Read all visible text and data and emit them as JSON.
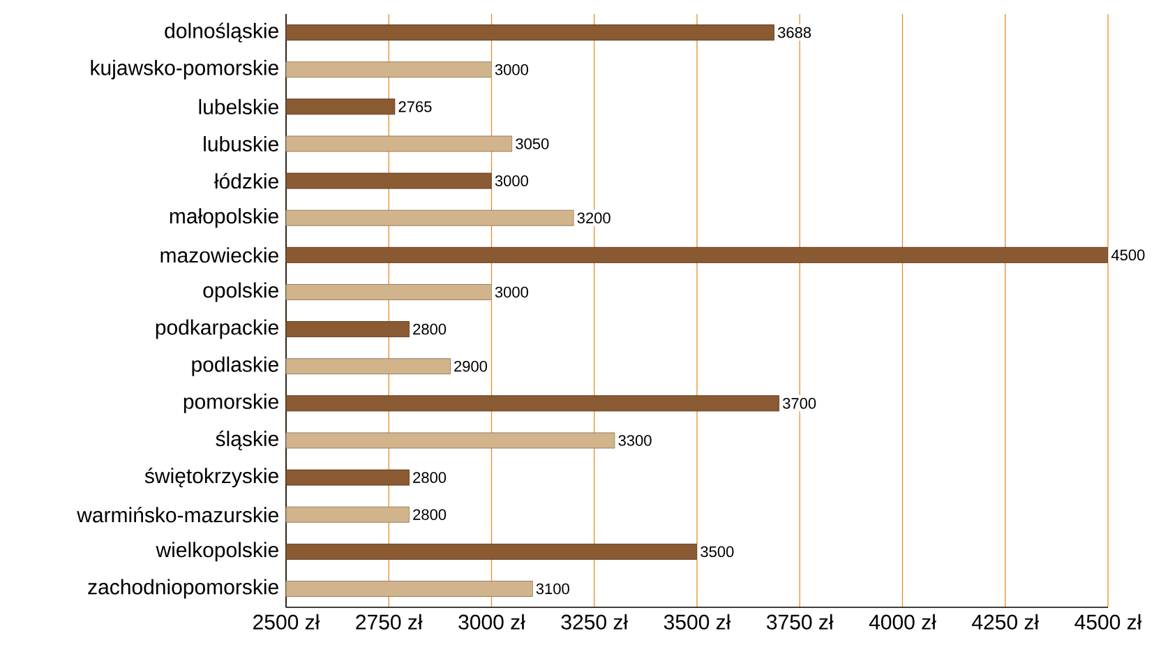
{
  "chart_data": {
    "type": "bar",
    "orientation": "horizontal",
    "categories": [
      "dolnośląskie",
      "kujawsko-pomorskie",
      "lubelskie",
      "lubuskie",
      "łódzkie",
      "małopolskie",
      "mazowieckie",
      "opolskie",
      "podkarpackie",
      "podlaskie",
      "pomorskie",
      "śląskie",
      "świętokrzyskie",
      "warmińsko-mazurskie",
      "wielkopolskie",
      "zachodniopomorskie"
    ],
    "values": [
      3688,
      3000,
      2765,
      3050,
      3000,
      3200,
      4500,
      3000,
      2800,
      2900,
      3700,
      3300,
      2800,
      2800,
      3500,
      3100
    ],
    "colors": [
      "#8a5a32",
      "#d2b48c",
      "#8a5a32",
      "#d2b48c",
      "#8a5a32",
      "#d2b48c",
      "#8a5a32",
      "#d2b48c",
      "#8a5a32",
      "#d2b48c",
      "#8a5a32",
      "#d2b48c",
      "#8a5a32",
      "#d2b48c",
      "#8a5a32",
      "#d2b48c"
    ],
    "xlim": [
      2500,
      4500
    ],
    "xticks": [
      {
        "value": 2500,
        "label": "2500 zł"
      },
      {
        "value": 2750,
        "label": "2750 zł"
      },
      {
        "value": 3000,
        "label": "3000 zł"
      },
      {
        "value": 3250,
        "label": "3250 zł"
      },
      {
        "value": 3500,
        "label": "3500 zł"
      },
      {
        "value": 3750,
        "label": "3750 zł"
      },
      {
        "value": 4000,
        "label": "4000 zł"
      },
      {
        "value": 4250,
        "label": "4250 zł"
      },
      {
        "value": 4500,
        "label": "4500 zł"
      }
    ],
    "grid": "x",
    "data_labels": true
  }
}
